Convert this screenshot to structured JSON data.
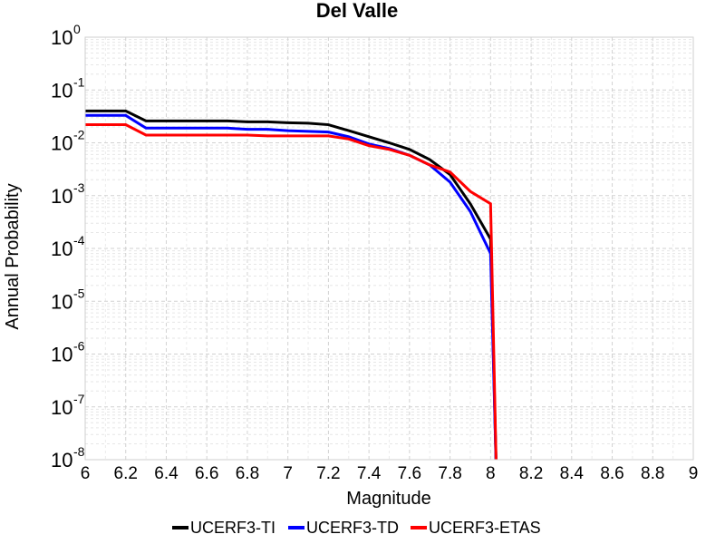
{
  "chart_data": {
    "type": "line",
    "title": "Del Valle",
    "xlabel": "Magnitude",
    "ylabel": "Annual Probability",
    "xlim": [
      6,
      9
    ],
    "ylim": [
      1e-08,
      1
    ],
    "y_scale": "log",
    "grid": true,
    "legend_position": "bottom",
    "x_ticks": [
      "6",
      "6.2",
      "6.4",
      "6.6",
      "6.8",
      "7",
      "7.2",
      "7.4",
      "7.6",
      "7.8",
      "8",
      "8.2",
      "8.4",
      "8.6",
      "8.8",
      "9"
    ],
    "y_ticks": [
      {
        "base": "10",
        "exp": "0"
      },
      {
        "base": "10",
        "exp": "-1"
      },
      {
        "base": "10",
        "exp": "-2"
      },
      {
        "base": "10",
        "exp": "-3"
      },
      {
        "base": "10",
        "exp": "-4"
      },
      {
        "base": "10",
        "exp": "-5"
      },
      {
        "base": "10",
        "exp": "-6"
      },
      {
        "base": "10",
        "exp": "-7"
      },
      {
        "base": "10",
        "exp": "-8"
      }
    ],
    "series": [
      {
        "name": "UCERF3-TI",
        "color": "#000000",
        "points": [
          [
            6.0,
            0.04
          ],
          [
            6.2,
            0.04
          ],
          [
            6.3,
            0.026
          ],
          [
            6.5,
            0.026
          ],
          [
            6.7,
            0.026
          ],
          [
            6.8,
            0.025
          ],
          [
            6.9,
            0.025
          ],
          [
            7.0,
            0.024
          ],
          [
            7.1,
            0.0235
          ],
          [
            7.2,
            0.022
          ],
          [
            7.3,
            0.017
          ],
          [
            7.4,
            0.013
          ],
          [
            7.5,
            0.01
          ],
          [
            7.6,
            0.0075
          ],
          [
            7.7,
            0.0048
          ],
          [
            7.8,
            0.0025
          ],
          [
            7.9,
            0.0007
          ],
          [
            8.0,
            0.00015
          ],
          [
            8.03,
            3e-09
          ]
        ]
      },
      {
        "name": "UCERF3-TD",
        "color": "#0000ff",
        "points": [
          [
            6.0,
            0.033
          ],
          [
            6.2,
            0.033
          ],
          [
            6.3,
            0.019
          ],
          [
            6.5,
            0.019
          ],
          [
            6.7,
            0.019
          ],
          [
            6.8,
            0.018
          ],
          [
            6.9,
            0.018
          ],
          [
            7.0,
            0.017
          ],
          [
            7.1,
            0.0165
          ],
          [
            7.2,
            0.016
          ],
          [
            7.3,
            0.013
          ],
          [
            7.4,
            0.0095
          ],
          [
            7.5,
            0.0078
          ],
          [
            7.6,
            0.0058
          ],
          [
            7.7,
            0.0038
          ],
          [
            7.8,
            0.0018
          ],
          [
            7.9,
            0.0005
          ],
          [
            8.0,
            8e-05
          ],
          [
            8.03,
            3e-09
          ]
        ]
      },
      {
        "name": "UCERF3-ETAS",
        "color": "#ff0000",
        "points": [
          [
            6.0,
            0.022
          ],
          [
            6.2,
            0.022
          ],
          [
            6.3,
            0.014
          ],
          [
            6.5,
            0.014
          ],
          [
            6.7,
            0.014
          ],
          [
            6.8,
            0.014
          ],
          [
            6.9,
            0.0135
          ],
          [
            7.0,
            0.0135
          ],
          [
            7.1,
            0.0135
          ],
          [
            7.2,
            0.0135
          ],
          [
            7.3,
            0.0118
          ],
          [
            7.4,
            0.0088
          ],
          [
            7.5,
            0.0075
          ],
          [
            7.6,
            0.0058
          ],
          [
            7.7,
            0.0038
          ],
          [
            7.8,
            0.0028
          ],
          [
            7.9,
            0.0012
          ],
          [
            8.0,
            0.0007
          ],
          [
            8.03,
            3e-09
          ]
        ]
      }
    ]
  }
}
